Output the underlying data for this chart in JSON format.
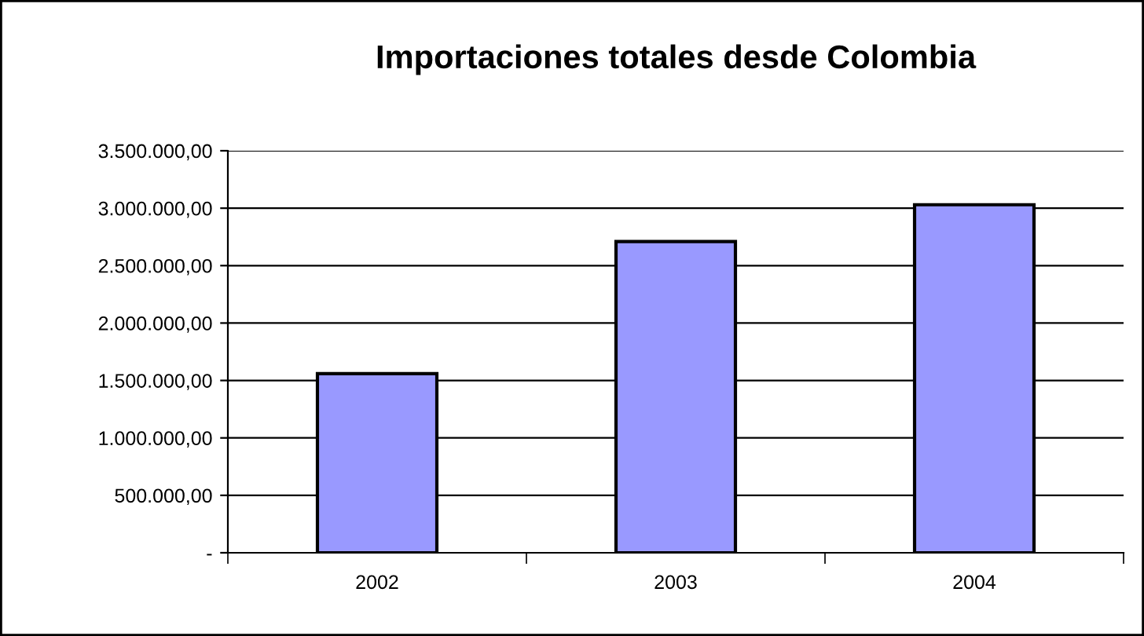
{
  "chart_data": {
    "type": "bar",
    "title": "Importaciones totales desde Colombia",
    "categories": [
      "2002",
      "2003",
      "2004"
    ],
    "values": [
      1560000,
      2710000,
      3030000
    ],
    "color": "#9999ff",
    "ylim": [
      0,
      3500000
    ],
    "yticks": [
      {
        "value": 0,
        "label": "-"
      },
      {
        "value": 500000,
        "label": "500.000,00"
      },
      {
        "value": 1000000,
        "label": "1.000.000,00"
      },
      {
        "value": 1500000,
        "label": "1.500.000,00"
      },
      {
        "value": 2000000,
        "label": "2.000.000,00"
      },
      {
        "value": 2500000,
        "label": "2.500.000,00"
      },
      {
        "value": 3000000,
        "label": "3.000.000,00"
      },
      {
        "value": 3500000,
        "label": "3.500.000,00"
      }
    ],
    "grid": "y"
  }
}
